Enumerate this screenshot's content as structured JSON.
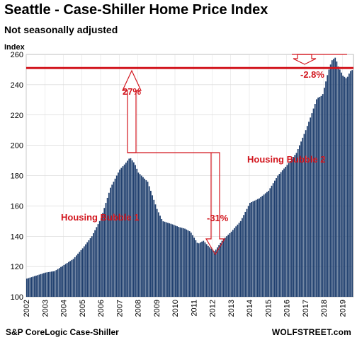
{
  "page": {
    "title": "Seattle - Case-Shiller Home Price Index",
    "subtitle": "Not seasonally adjusted",
    "source": "S&P CoreLogic Case-Shiller",
    "brand": "WOLFSTREET.com"
  },
  "chart_data": {
    "type": "bar",
    "title": "Seattle - Case-Shiller Home Price Index",
    "subtitle": "Not seasonally adjusted",
    "ylabel": "Index",
    "xlabel": "",
    "ylim": [
      100,
      260
    ],
    "yticks": [
      100,
      120,
      140,
      160,
      180,
      200,
      220,
      240,
      260
    ],
    "xlim": [
      2002,
      2019.6
    ],
    "xticks": [
      "2002",
      "2003",
      "2004",
      "2005",
      "2006",
      "2007",
      "2008",
      "2009",
      "2010",
      "2011",
      "2012",
      "2013",
      "2014",
      "2015",
      "2016",
      "2017",
      "2018",
      "2019"
    ],
    "grid": true,
    "bar_color": "#1f3f6e",
    "reference_line": {
      "value": 251,
      "color": "#d2161e"
    },
    "keyframes": [
      [
        2002.0,
        112
      ],
      [
        2002.5,
        114
      ],
      [
        2003.0,
        116
      ],
      [
        2003.5,
        117
      ],
      [
        2004.0,
        121
      ],
      [
        2004.5,
        125
      ],
      [
        2005.0,
        132
      ],
      [
        2005.5,
        140
      ],
      [
        2006.0,
        152
      ],
      [
        2006.5,
        172
      ],
      [
        2007.0,
        184
      ],
      [
        2007.3,
        188
      ],
      [
        2007.55,
        192
      ],
      [
        2007.8,
        188
      ],
      [
        2008.0,
        182
      ],
      [
        2008.5,
        176
      ],
      [
        2009.0,
        158
      ],
      [
        2009.3,
        150
      ],
      [
        2009.8,
        148
      ],
      [
        2010.2,
        146
      ],
      [
        2010.5,
        145
      ],
      [
        2010.8,
        143
      ],
      [
        2011.2,
        135
      ],
      [
        2011.5,
        137
      ],
      [
        2011.8,
        133
      ],
      [
        2012.1,
        130
      ],
      [
        2012.5,
        137
      ],
      [
        2013.0,
        143
      ],
      [
        2013.5,
        150
      ],
      [
        2014.0,
        162
      ],
      [
        2014.5,
        165
      ],
      [
        2015.0,
        170
      ],
      [
        2015.5,
        180
      ],
      [
        2016.0,
        187
      ],
      [
        2016.5,
        195
      ],
      [
        2017.0,
        210
      ],
      [
        2017.3,
        220
      ],
      [
        2017.6,
        231
      ],
      [
        2017.9,
        233
      ],
      [
        2018.2,
        248
      ],
      [
        2018.4,
        256
      ],
      [
        2018.6,
        258
      ],
      [
        2018.75,
        252
      ],
      [
        2019.0,
        246
      ],
      [
        2019.2,
        244
      ],
      [
        2019.4,
        249
      ],
      [
        2019.55,
        250
      ]
    ],
    "annotations": [
      {
        "text": "27%",
        "color": "#d2161e"
      },
      {
        "text": "-31%",
        "color": "#d2161e"
      },
      {
        "text": "-2.8%",
        "color": "#d2161e"
      },
      {
        "text": "Housing Bubble 1",
        "color": "#d2161e"
      },
      {
        "text": "Housing Bubble 2",
        "color": "#d2161e"
      }
    ]
  }
}
